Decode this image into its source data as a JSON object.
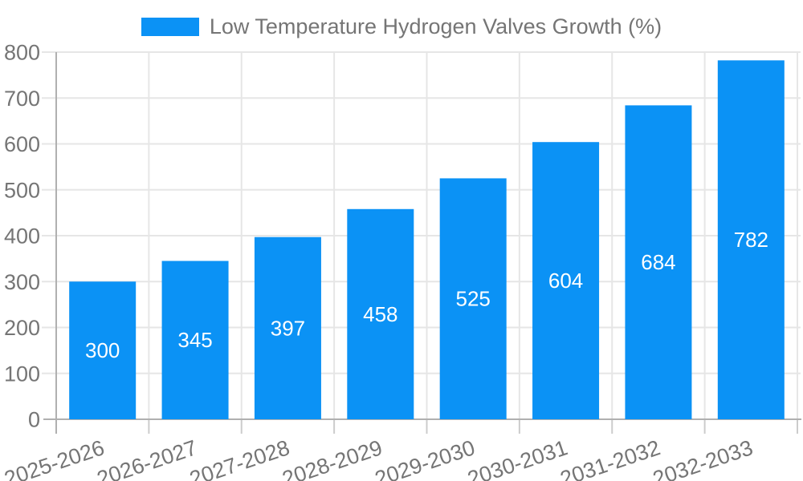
{
  "chart_data": {
    "type": "bar",
    "title": "Low Temperature Hydrogen Valves Growth (%)",
    "legend_label": "Low Temperature Hydrogen Valves Growth (%)",
    "legend_position": "top",
    "categories": [
      "2025-2026",
      "2026-2027",
      "2027-2028",
      "2028-2029",
      "2029-2030",
      "2030-2031",
      "2031-2032",
      "2032-2033"
    ],
    "values": [
      300,
      345,
      397,
      458,
      525,
      604,
      684,
      782
    ],
    "value_labels": [
      "300",
      "345",
      "397",
      "458",
      "525",
      "604",
      "684",
      "782"
    ],
    "xlabel": "",
    "ylabel": "",
    "ylim": [
      0,
      800
    ],
    "ytick_interval": 100,
    "ytick_labels": [
      "0",
      "100",
      "200",
      "300",
      "400",
      "500",
      "600",
      "700",
      "800"
    ],
    "grid": true,
    "colors": {
      "bar": "#0b92f5",
      "value_label": "#ffffff",
      "axis_text": "#757575",
      "legend_text": "#757575",
      "grid_line": "#e6e6e6",
      "axis_line": "#b0b0b0",
      "tick_mark": "#cccccc",
      "background": "#ffffff"
    }
  }
}
